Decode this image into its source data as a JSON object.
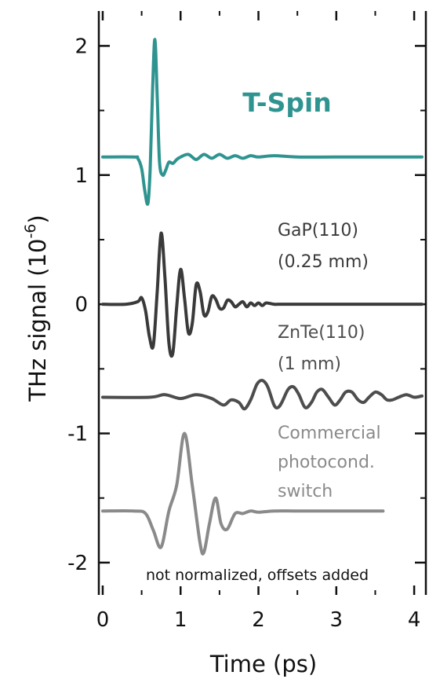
{
  "chart_data": {
    "type": "line",
    "title": "",
    "xlabel": "Time (ps)",
    "ylabel": "THz signal (10",
    "ylabel_exponent": "-6",
    "ylabel_close": ")",
    "xlim": [
      -0.05,
      4.15
    ],
    "ylim": [
      -2.25,
      2.27
    ],
    "x_ticks": [
      {
        "value": 0,
        "label": "0"
      },
      {
        "value": 1,
        "label": "1"
      },
      {
        "value": 2,
        "label": "2"
      },
      {
        "value": 3,
        "label": "3"
      },
      {
        "value": 4,
        "label": "4"
      }
    ],
    "y_ticks": [
      {
        "value": 2,
        "label": "2"
      },
      {
        "value": 1,
        "label": "1"
      },
      {
        "value": 0,
        "label": "0"
      },
      {
        "value": -1,
        "label": "-1"
      },
      {
        "value": -2,
        "label": "-2"
      }
    ],
    "grid": false,
    "annotation": "not normalized, offsets added",
    "series": [
      {
        "name": "T-Spin",
        "color": "#2f9490",
        "label_lines": [
          "T-Spin"
        ],
        "x": [
          0.0,
          0.4,
          0.45,
          0.5,
          0.54,
          0.58,
          0.61,
          0.64,
          0.67,
          0.7,
          0.73,
          0.77,
          0.81,
          0.85,
          0.9,
          0.95,
          1.0,
          1.1,
          1.2,
          1.3,
          1.4,
          1.5,
          1.6,
          1.7,
          1.8,
          1.9,
          2.0,
          2.2,
          2.5,
          3.0,
          3.5,
          4.1
        ],
        "y": [
          1.14,
          1.14,
          1.13,
          1.05,
          0.88,
          0.78,
          1.05,
          1.65,
          2.05,
          1.6,
          1.1,
          1.0,
          1.04,
          1.1,
          1.09,
          1.12,
          1.14,
          1.16,
          1.12,
          1.16,
          1.13,
          1.16,
          1.13,
          1.15,
          1.13,
          1.15,
          1.14,
          1.15,
          1.14,
          1.14,
          1.14,
          1.14
        ]
      },
      {
        "name": "GaP(110) (0.25 mm)",
        "color": "#3a3a3a",
        "label_lines": [
          "GaP(110)",
          "(0.25 mm)"
        ],
        "x": [
          0.0,
          0.3,
          0.45,
          0.5,
          0.55,
          0.6,
          0.65,
          0.7,
          0.75,
          0.8,
          0.85,
          0.9,
          0.95,
          1.0,
          1.05,
          1.1,
          1.15,
          1.2,
          1.25,
          1.3,
          1.35,
          1.4,
          1.45,
          1.5,
          1.55,
          1.6,
          1.65,
          1.7,
          1.75,
          1.8,
          1.85,
          1.9,
          1.95,
          2.0,
          2.05,
          2.1,
          2.2,
          2.3,
          2.5,
          3.0,
          3.5,
          4.1
        ],
        "y": [
          0.0,
          0.0,
          0.02,
          0.05,
          -0.05,
          -0.25,
          -0.32,
          0.1,
          0.55,
          0.2,
          -0.3,
          -0.38,
          -0.02,
          0.27,
          0.05,
          -0.22,
          -0.15,
          0.15,
          0.1,
          -0.08,
          -0.06,
          0.06,
          0.04,
          -0.03,
          -0.03,
          0.03,
          0.02,
          -0.02,
          0.0,
          0.02,
          -0.02,
          0.01,
          -0.01,
          0.01,
          -0.01,
          0.01,
          0.0,
          0.0,
          0.0,
          0.0,
          0.0,
          0.0
        ]
      },
      {
        "name": "ZnTe(110) (1 mm)",
        "color": "#4d4d4d",
        "label_lines": [
          "ZnTe(110)",
          "(1 mm)"
        ],
        "x": [
          0.0,
          0.6,
          0.8,
          1.0,
          1.2,
          1.4,
          1.55,
          1.65,
          1.75,
          1.82,
          1.9,
          1.98,
          2.05,
          2.12,
          2.2,
          2.25,
          2.3,
          2.38,
          2.45,
          2.52,
          2.6,
          2.68,
          2.75,
          2.82,
          2.9,
          2.98,
          3.05,
          3.12,
          3.2,
          3.28,
          3.35,
          3.42,
          3.5,
          3.58,
          3.65,
          3.72,
          3.8,
          3.9,
          4.0,
          4.1
        ],
        "y": [
          -0.72,
          -0.72,
          -0.7,
          -0.73,
          -0.7,
          -0.73,
          -0.78,
          -0.74,
          -0.76,
          -0.81,
          -0.74,
          -0.62,
          -0.59,
          -0.64,
          -0.78,
          -0.8,
          -0.76,
          -0.66,
          -0.64,
          -0.7,
          -0.8,
          -0.76,
          -0.68,
          -0.66,
          -0.72,
          -0.78,
          -0.74,
          -0.68,
          -0.68,
          -0.74,
          -0.76,
          -0.72,
          -0.68,
          -0.7,
          -0.74,
          -0.74,
          -0.72,
          -0.7,
          -0.72,
          -0.71
        ]
      },
      {
        "name": "Commercial photocond. switch",
        "color": "#8a8a8a",
        "label_lines": [
          "Commercial",
          "photocond.",
          "switch"
        ],
        "x": [
          0.0,
          0.4,
          0.55,
          0.65,
          0.75,
          0.85,
          0.95,
          1.05,
          1.15,
          1.25,
          1.3,
          1.37,
          1.45,
          1.52,
          1.6,
          1.7,
          1.8,
          1.9,
          2.0,
          2.2,
          2.5,
          3.0,
          3.6
        ],
        "y": [
          -1.6,
          -1.6,
          -1.62,
          -1.75,
          -1.88,
          -1.6,
          -1.4,
          -1.0,
          -1.4,
          -1.85,
          -1.92,
          -1.7,
          -1.5,
          -1.7,
          -1.74,
          -1.62,
          -1.62,
          -1.6,
          -1.61,
          -1.6,
          -1.6,
          -1.6,
          -1.6
        ]
      }
    ]
  }
}
